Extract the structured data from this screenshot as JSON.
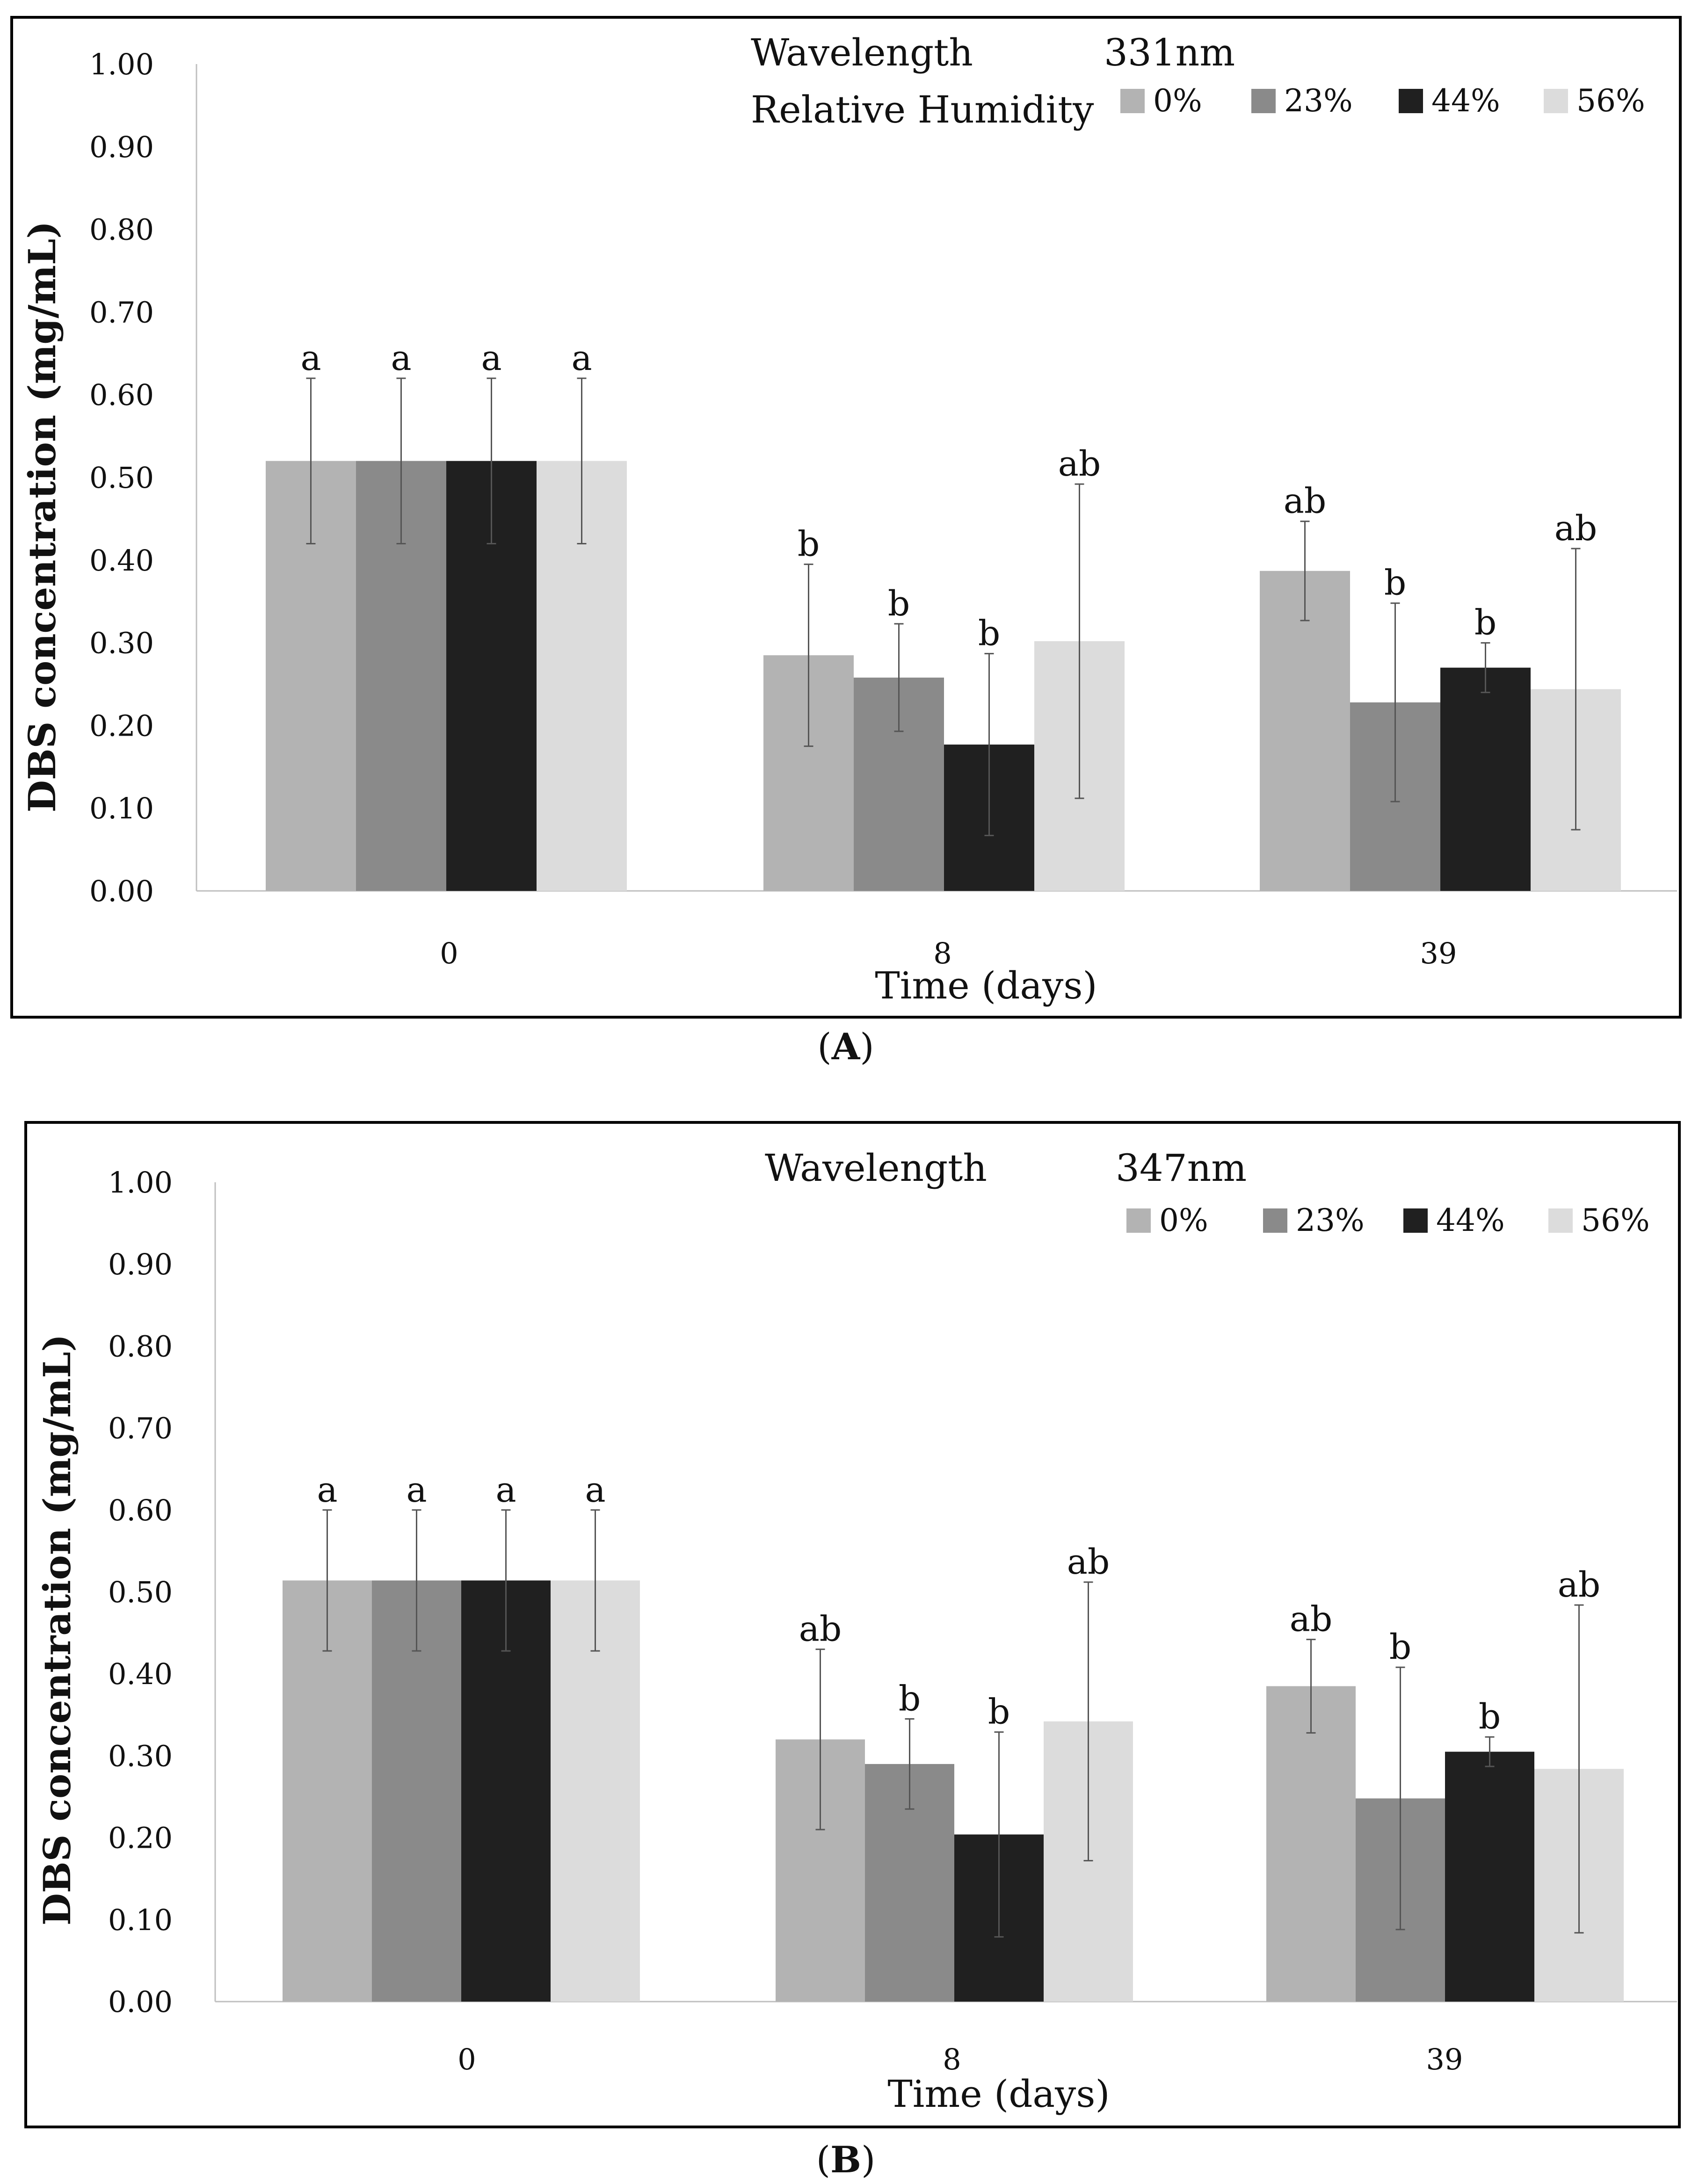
{
  "chart_data": [
    {
      "type": "bar",
      "panel_label": "A",
      "wavelength_label": "Wavelength",
      "wavelength_value": "331nm",
      "legend_title": "Relative Humidity",
      "xlabel": "Time (days)",
      "ylabel": "DBS concentration (mg/mL)",
      "ylim": [
        0,
        1
      ],
      "yticks": [
        "0.00",
        "0.10",
        "0.20",
        "0.30",
        "0.40",
        "0.50",
        "0.60",
        "0.70",
        "0.80",
        "0.90",
        "1.00"
      ],
      "categories": [
        "0",
        "8",
        "39"
      ],
      "series": [
        {
          "name": "0%",
          "color": "#b3b3b3",
          "values": [
            0.52,
            0.285,
            0.387
          ],
          "errors": [
            0.1,
            0.11,
            0.06
          ],
          "labels": [
            "a",
            "b",
            "ab"
          ]
        },
        {
          "name": "23%",
          "color": "#8a8a8a",
          "values": [
            0.52,
            0.258,
            0.228
          ],
          "errors": [
            0.1,
            0.065,
            0.12
          ],
          "labels": [
            "a",
            "b",
            "b"
          ]
        },
        {
          "name": "44%",
          "color": "#202020",
          "values": [
            0.52,
            0.177,
            0.27
          ],
          "errors": [
            0.1,
            0.11,
            0.03
          ],
          "labels": [
            "a",
            "b",
            "b"
          ]
        },
        {
          "name": "56%",
          "color": "#dcdcdc",
          "values": [
            0.52,
            0.302,
            0.244
          ],
          "errors": [
            0.1,
            0.19,
            0.17
          ],
          "labels": [
            "a",
            "ab",
            "ab"
          ]
        }
      ]
    },
    {
      "type": "bar",
      "panel_label": "B",
      "wavelength_label": "Wavelength",
      "wavelength_value": "347nm",
      "legend_title": "",
      "xlabel": "Time (days)",
      "ylabel": "DBS concentration (mg/mL)",
      "ylim": [
        0,
        1
      ],
      "yticks": [
        "0.00",
        "0.10",
        "0.20",
        "0.30",
        "0.40",
        "0.50",
        "0.60",
        "0.70",
        "0.80",
        "0.90",
        "1.00"
      ],
      "categories": [
        "0",
        "8",
        "39"
      ],
      "series": [
        {
          "name": "0%",
          "color": "#b3b3b3",
          "values": [
            0.514,
            0.32,
            0.385
          ],
          "errors": [
            0.086,
            0.11,
            0.057
          ],
          "labels": [
            "a",
            "ab",
            "ab"
          ]
        },
        {
          "name": "23%",
          "color": "#8a8a8a",
          "values": [
            0.514,
            0.29,
            0.248
          ],
          "errors": [
            0.086,
            0.055,
            0.16
          ],
          "labels": [
            "a",
            "b",
            "b"
          ]
        },
        {
          "name": "44%",
          "color": "#202020",
          "values": [
            0.514,
            0.204,
            0.305
          ],
          "errors": [
            0.086,
            0.125,
            0.018
          ],
          "labels": [
            "a",
            "b",
            "b"
          ]
        },
        {
          "name": "56%",
          "color": "#dcdcdc",
          "values": [
            0.514,
            0.342,
            0.284
          ],
          "errors": [
            0.086,
            0.17,
            0.2
          ],
          "labels": [
            "a",
            "ab",
            "ab"
          ]
        }
      ]
    }
  ]
}
